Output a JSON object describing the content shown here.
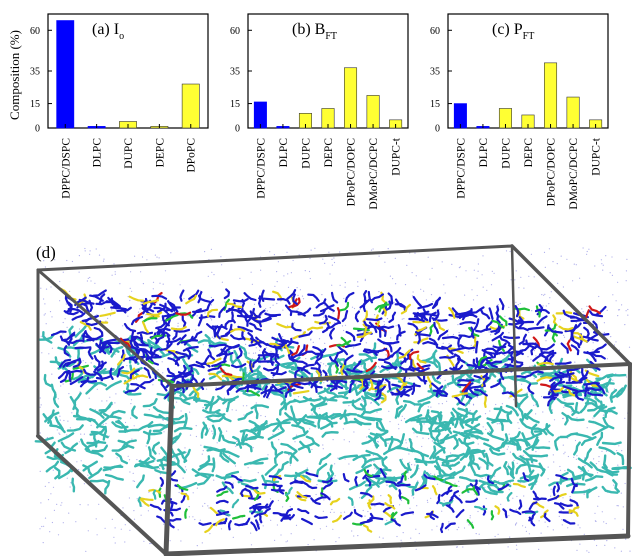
{
  "colors": {
    "blue_bar": "#0000ff",
    "yellow_bar": "#ffff33",
    "bar_stroke": "#333333",
    "lipid_blue": "#1a1acc",
    "lipid_teal": "#3ab8b0",
    "lipid_yellow": "#e6d21e",
    "lipid_red": "#d01818",
    "lipid_green": "#1fbf3a",
    "water_dots": "#6a6ad8",
    "box_edge": "#555555"
  },
  "y_axis_label": "Composition (%)",
  "chart_data": [
    {
      "type": "bar",
      "panel": "(a)",
      "title_main": "I",
      "title_sub": "o",
      "categories": [
        "DPPC/DSPC",
        "DLPC",
        "DUPC",
        "DEPC",
        "DPoPC"
      ],
      "values": [
        66,
        1,
        4,
        1,
        27
      ],
      "bar_colors": [
        "blue",
        "blue",
        "yellow",
        "yellow",
        "yellow"
      ],
      "ylim": [
        0,
        70
      ],
      "yticks": [
        "0",
        "15",
        "35",
        "60"
      ],
      "ytick_values": [
        0,
        15,
        35,
        60
      ]
    },
    {
      "type": "bar",
      "panel": "(b)",
      "title_main": "B",
      "title_sub": "FT",
      "categories": [
        "DPPC/DSPC",
        "DLPC",
        "DUPC",
        "DEPC",
        "DPoPC/DOPC",
        "DMoPC/DCPC",
        "DUPC-t"
      ],
      "values": [
        16,
        1,
        9,
        12,
        37,
        20,
        5
      ],
      "bar_colors": [
        "blue",
        "blue",
        "yellow",
        "yellow",
        "yellow",
        "yellow",
        "yellow"
      ],
      "ylim": [
        0,
        70
      ],
      "yticks": [
        "0",
        "15",
        "35",
        "60"
      ],
      "ytick_values": [
        0,
        15,
        35,
        60
      ]
    },
    {
      "type": "bar",
      "panel": "(c)",
      "title_main": "P",
      "title_sub": "FT",
      "categories": [
        "DPPC/DSPC",
        "DLPC",
        "DUPC",
        "DEPC",
        "DPoPC/DOPC",
        "DMoPC/DCPC",
        "DUPC-t"
      ],
      "values": [
        15,
        1,
        12,
        8,
        40,
        19,
        5
      ],
      "bar_colors": [
        "blue",
        "blue",
        "yellow",
        "yellow",
        "yellow",
        "yellow",
        "yellow"
      ],
      "ylim": [
        0,
        70
      ],
      "yticks": [
        "0",
        "15",
        "35",
        "60"
      ],
      "ytick_values": [
        0,
        15,
        35,
        60
      ]
    }
  ],
  "panel_d": {
    "label": "(d)"
  }
}
